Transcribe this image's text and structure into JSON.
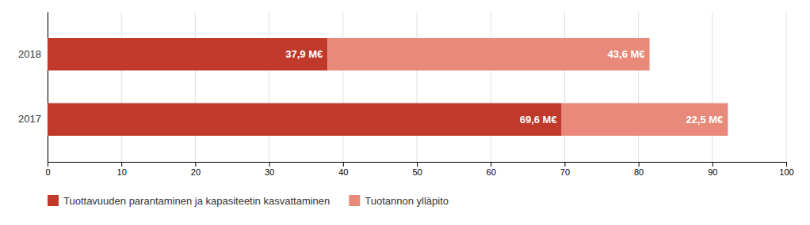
{
  "chart_data": {
    "type": "bar",
    "orientation": "horizontal",
    "stacked": true,
    "categories": [
      "2018",
      "2017"
    ],
    "series": [
      {
        "name": "Tuottavuuden parantaminen ja kapasiteetin kasvattaminen",
        "color": "#c0392b",
        "values": [
          37.9,
          69.6
        ],
        "value_labels": [
          "37,9 M€",
          "69,6 M€"
        ]
      },
      {
        "name": "Tuotannon ylläpito",
        "color": "#e8897a",
        "values": [
          43.6,
          22.5
        ],
        "value_labels": [
          "43,6 M€",
          "22,5 M€"
        ]
      }
    ],
    "xlim": [
      0,
      100
    ],
    "xticks": [
      0,
      10,
      20,
      30,
      40,
      50,
      60,
      70,
      80,
      90,
      100
    ],
    "grid": true,
    "data_labels": true,
    "legend": "bottom"
  }
}
